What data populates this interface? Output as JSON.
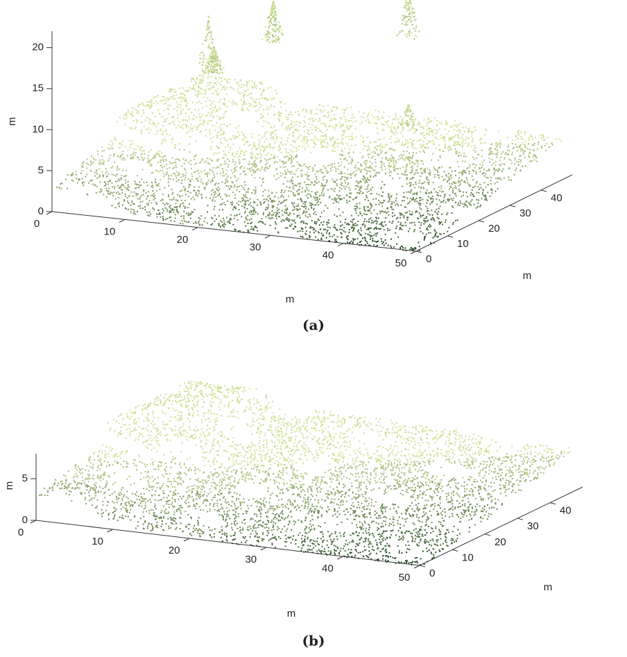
{
  "chart_data": [
    {
      "type": "scatter3d",
      "caption": "(a)",
      "xlabel": "m",
      "ylabel": "m",
      "zlabel": "m",
      "xlim": [
        0,
        50
      ],
      "ylim": [
        0,
        50
      ],
      "zlim": [
        0,
        22
      ],
      "xticks": [
        0,
        10,
        20,
        30,
        40,
        50
      ],
      "yticks": [
        0,
        10,
        20,
        30,
        40
      ],
      "zticks": [
        0,
        5,
        10,
        15,
        20
      ],
      "color": "#4a7a3a",
      "trees": true
    },
    {
      "type": "scatter3d",
      "caption": "(b)",
      "xlabel": "m",
      "ylabel": "m",
      "zlabel": "m",
      "xlim": [
        0,
        50
      ],
      "ylim": [
        0,
        50
      ],
      "zlim": [
        0,
        8
      ],
      "xticks": [
        0,
        10,
        20,
        30,
        40,
        50
      ],
      "yticks": [
        0,
        10,
        20,
        30,
        40
      ],
      "zticks": [
        0,
        5
      ],
      "color": "#4a7a3a",
      "trees": false
    }
  ]
}
